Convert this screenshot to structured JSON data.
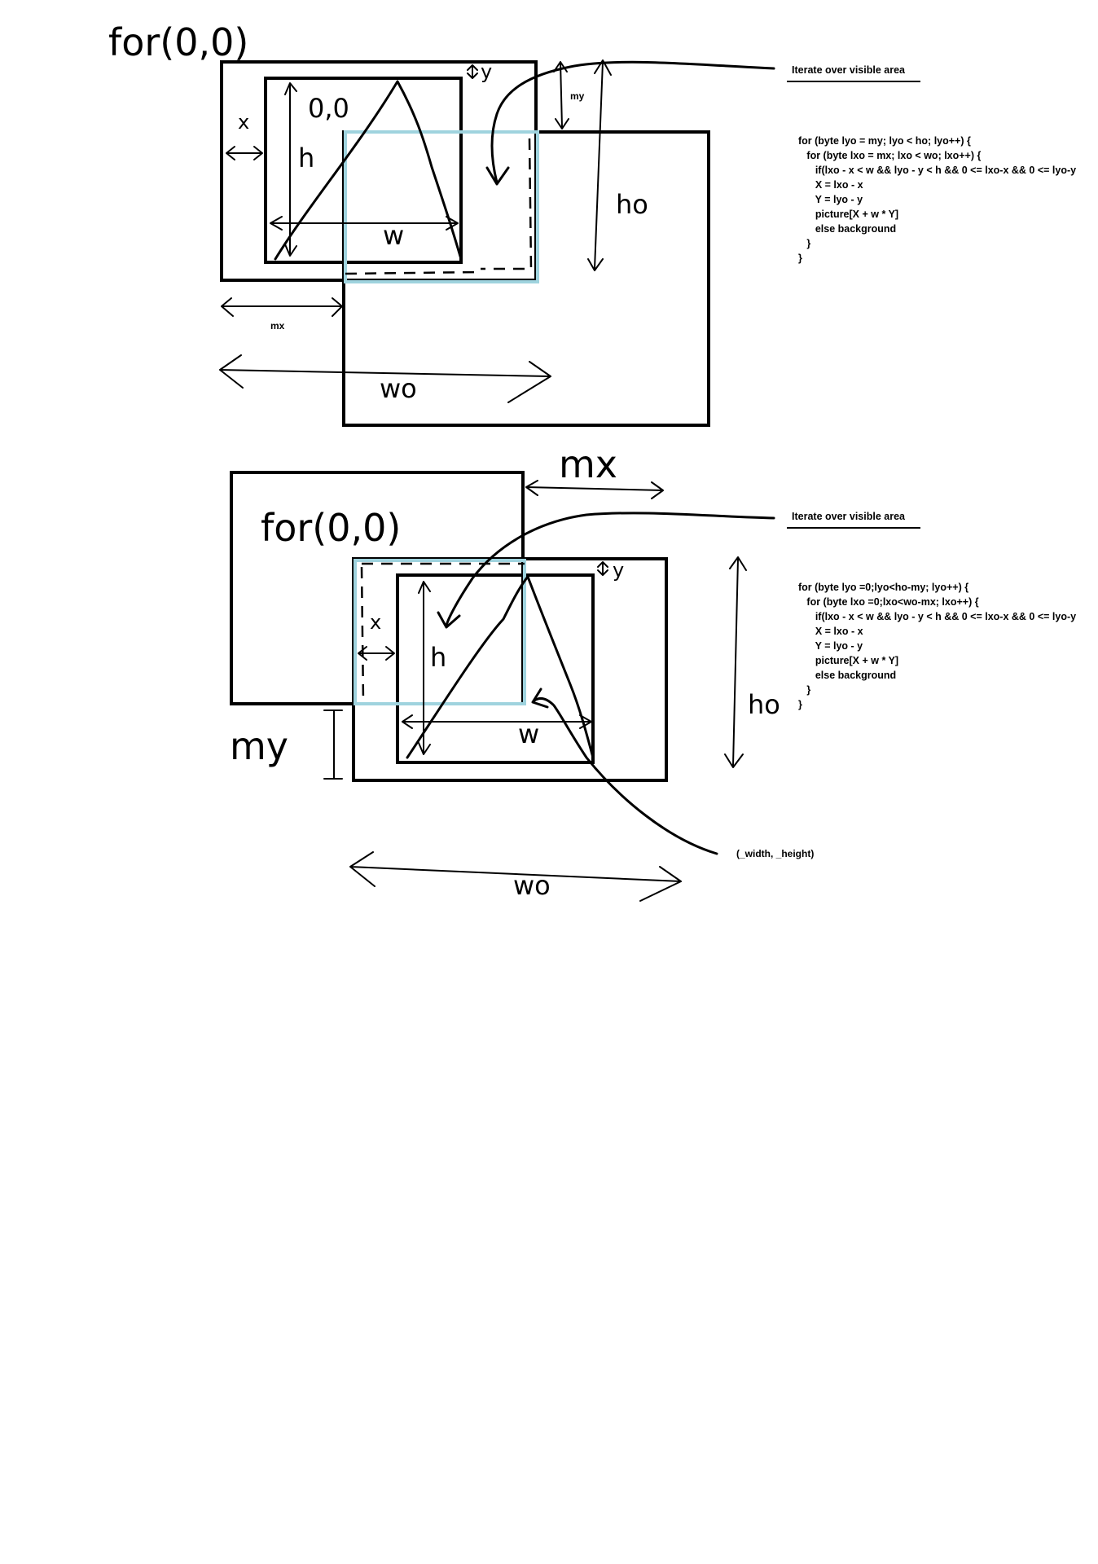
{
  "diagram1": {
    "title_handwritten": "for(0,0)",
    "origin_label": "0,0",
    "x_label": "x",
    "y_label": "y",
    "h_label": "h",
    "w_label": "w",
    "my_label": "my",
    "mx_label": "mx",
    "ho_label": "ho",
    "wo_label": "wo",
    "annotation_title": "Iterate over visible area",
    "code_lines": [
      "for (byte lyo = my; lyo < ho; lyo++) {",
      "   for (byte lxo = mx; lxo < wo; lxo++) {",
      "      if(lxo - x < w && lyo - y < h && 0 <= lxo-x && 0 <= lyo-y",
      "      X = lxo - x",
      "      Y = lyo - y",
      "      picture[X + w * Y]",
      "      else background",
      "   }",
      "}"
    ]
  },
  "diagram2": {
    "title_handwritten": "for(0,0)",
    "x_label": "x",
    "y_label": "y",
    "h_label": "h",
    "w_label": "w",
    "my_label": "my",
    "mx_label": "mx",
    "ho_label": "ho",
    "wo_label": "wo",
    "annotation_title": "Iterate over visible area",
    "corner_label": "(_width, _height)",
    "code_lines": [
      "for (byte lyo =0;lyo<ho-my; lyo++) {",
      "   for (byte lxo =0;lxo<wo-mx; lxo++) {",
      "      if(lxo - x < w && lyo - y < h && 0 <= lxo-x && 0 <= lyo-y",
      "      X = lxo - x",
      "      Y = lyo - y",
      "      picture[X + w * Y]",
      "      else background",
      "   }",
      "}"
    ]
  },
  "colors": {
    "ink": "#000000",
    "viewport": "#9fd3de",
    "background": "#ffffff"
  }
}
